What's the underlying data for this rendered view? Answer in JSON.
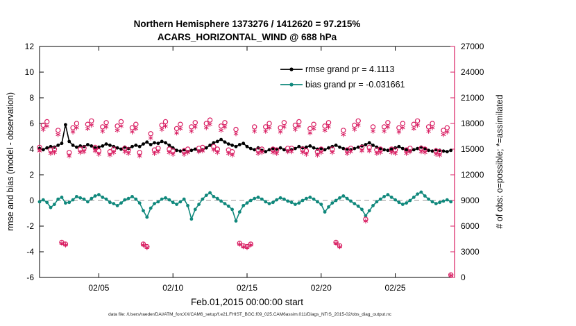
{
  "caption": "data file: /Users/raeder/DAI/ATM_forcXX/CAM6_setup/f.e21.FHIST_BGC.f09_025.CAM6assim.011/Diags_NTrS_2015-02/obs_diag_output.nc",
  "chart_data": {
    "type": "line",
    "title": "Northern Hemisphere 1373276 / 1412620 = 97.215%",
    "subtitle": "ACARS_HORIZONTAL_WIND @ 688 hPa",
    "xlabel": "Feb.01,2015 00:00:00 start",
    "ylabel_left": "rmse and bias (model - observation)",
    "ylabel_right": "# of obs: o=possible; *=assimilated",
    "xlim": [
      1,
      29
    ],
    "ylim_left": [
      -6,
      12
    ],
    "ylim_right": [
      0,
      27000
    ],
    "yticks_left": [
      -6,
      -4,
      -2,
      0,
      2,
      4,
      6,
      8,
      10,
      12
    ],
    "yticks_right": [
      0,
      3000,
      6000,
      9000,
      12000,
      15000,
      18000,
      21000,
      24000,
      27000
    ],
    "xticks": [
      {
        "value": 5,
        "label": "02/05"
      },
      {
        "value": 10,
        "label": "02/10"
      },
      {
        "value": 15,
        "label": "02/15"
      },
      {
        "value": 20,
        "label": "02/20"
      },
      {
        "value": 25,
        "label": "02/25"
      }
    ],
    "x_days": {
      "start": 1.0,
      "step": 0.25,
      "count": 112
    },
    "zero_line": {
      "value": 0,
      "color": "#aaaaaa"
    },
    "legend": [
      {
        "label": "rmse grand pr = 4.1113",
        "text_color": "#2222cc",
        "line_color": "#000000"
      },
      {
        "label": "bias grand pr = -0.031661",
        "text_color": "#10887c",
        "line_color": "#10887c"
      }
    ],
    "series": [
      {
        "name": "rmse",
        "axis": "left",
        "color": "#000000",
        "style": "line-dot",
        "values": [
          4.05,
          3.95,
          4.1,
          4.2,
          4.15,
          4.3,
          4.45,
          5.9,
          4.6,
          4.3,
          4.15,
          4.25,
          4.2,
          4.35,
          4.25,
          4.1,
          4.15,
          4.25,
          4.4,
          4.3,
          4.2,
          4.1,
          4.0,
          4.15,
          4.05,
          4.2,
          4.3,
          4.2,
          4.4,
          4.55,
          4.35,
          4.5,
          4.45,
          4.6,
          4.5,
          4.3,
          4.1,
          3.9,
          3.85,
          3.95,
          3.8,
          3.9,
          4.0,
          3.85,
          3.95,
          4.1,
          4.3,
          4.5,
          4.6,
          4.75,
          4.55,
          4.4,
          4.3,
          4.2,
          4.35,
          4.45,
          4.2,
          4.05,
          3.95,
          4.1,
          3.9,
          3.8,
          3.95,
          4.05,
          4.0,
          4.1,
          3.95,
          3.85,
          3.95,
          4.05,
          4.2,
          4.1,
          4.15,
          4.25,
          4.1,
          4.0,
          4.05,
          3.95,
          4.1,
          4.2,
          4.3,
          4.15,
          4.05,
          4.0,
          3.95,
          4.05,
          4.15,
          4.25,
          4.35,
          4.5,
          4.3,
          4.15,
          4.05,
          3.95,
          3.9,
          4.0,
          4.1,
          4.2,
          4.05,
          3.95,
          3.85,
          3.95,
          4.05,
          4.15,
          4.05,
          3.9,
          3.85,
          3.95,
          3.9,
          3.85,
          3.8,
          3.9
        ]
      },
      {
        "name": "bias",
        "axis": "left",
        "color": "#10887c",
        "style": "line-dot",
        "values": [
          -0.1,
          0.05,
          -0.15,
          -0.55,
          -0.3,
          0.1,
          0.25,
          -0.2,
          -0.15,
          0.05,
          0.3,
          0.2,
          0.1,
          -0.1,
          0.15,
          0.35,
          0.45,
          0.25,
          0.1,
          -0.15,
          -0.25,
          -0.4,
          -0.2,
          0.05,
          0.15,
          0.3,
          0.1,
          -0.2,
          -0.8,
          -1.3,
          -0.6,
          -0.25,
          -0.1,
          0.1,
          0.2,
          0.05,
          -0.15,
          -0.3,
          -0.1,
          0.1,
          -0.4,
          -1.45,
          -0.7,
          -0.3,
          0.1,
          0.4,
          0.6,
          0.3,
          0.15,
          -0.05,
          -0.25,
          -0.45,
          -0.7,
          -1.6,
          -0.9,
          -0.4,
          -0.2,
          0.0,
          0.15,
          0.25,
          0.1,
          -0.1,
          -0.25,
          -0.15,
          0.05,
          0.2,
          0.1,
          -0.05,
          -0.15,
          -0.3,
          -0.2,
          0.0,
          0.15,
          0.25,
          0.1,
          -0.1,
          -0.3,
          -0.9,
          -0.5,
          -0.2,
          0.0,
          0.2,
          0.35,
          0.15,
          -0.05,
          -0.25,
          -0.45,
          -0.7,
          -1.2,
          -0.8,
          -0.4,
          -0.1,
          0.1,
          0.3,
          0.45,
          0.25,
          0.05,
          -0.15,
          -0.3,
          -0.2,
          0.0,
          0.25,
          0.5,
          0.65,
          0.35,
          0.1,
          -0.1,
          -0.25,
          -0.15,
          -0.05,
          0.05,
          -0.1
        ]
      },
      {
        "name": "possible",
        "axis": "right",
        "color": "#d81b60",
        "style": "circle",
        "values": [
          15200,
          17800,
          18200,
          14900,
          15000,
          17200,
          4100,
          3900,
          14600,
          17500,
          18000,
          15000,
          15100,
          17900,
          18300,
          15200,
          14800,
          17600,
          18100,
          14700,
          15000,
          17700,
          18200,
          15100,
          14900,
          17500,
          17900,
          14600,
          3900,
          3600,
          16800,
          14900,
          15100,
          17800,
          18200,
          15000,
          14800,
          17400,
          17900,
          14800,
          15000,
          17600,
          18100,
          15100,
          15200,
          18000,
          18400,
          15300,
          15000,
          17700,
          18100,
          14900,
          14700,
          17300,
          4000,
          3700,
          3600,
          3900,
          17600,
          14900,
          15000,
          17600,
          18000,
          15000,
          14900,
          17500,
          18100,
          15100,
          15100,
          17800,
          18200,
          15000,
          14800,
          17400,
          17900,
          14700,
          15000,
          17700,
          18100,
          15000,
          4100,
          3700,
          17200,
          14900,
          15100,
          17800,
          18300,
          15200,
          6800,
          15200,
          17600,
          14900,
          15000,
          17600,
          18100,
          15000,
          14900,
          17500,
          18000,
          14900,
          15100,
          17900,
          18300,
          15100,
          15000,
          17600,
          18000,
          14800,
          14700,
          17200,
          17500,
          300
        ]
      },
      {
        "name": "assimilated",
        "axis": "right",
        "color": "#d81b60",
        "style": "asterisk",
        "values": [
          14800,
          17300,
          17700,
          14500,
          14600,
          16700,
          4000,
          3800,
          14200,
          17000,
          17500,
          14600,
          14700,
          17400,
          17800,
          14800,
          14400,
          17100,
          17600,
          14300,
          14600,
          17200,
          17700,
          14700,
          14500,
          17000,
          17400,
          14200,
          3800,
          3500,
          16300,
          14500,
          14700,
          17300,
          17700,
          14600,
          14400,
          16900,
          17400,
          14400,
          14600,
          17100,
          17600,
          14700,
          14800,
          17500,
          17900,
          14900,
          14600,
          17200,
          17600,
          14500,
          14300,
          16800,
          3900,
          3600,
          3500,
          3800,
          17100,
          14500,
          14600,
          17100,
          17500,
          14600,
          14500,
          17000,
          17600,
          14700,
          14700,
          17300,
          17700,
          14600,
          14400,
          16900,
          17400,
          14300,
          14600,
          17200,
          17600,
          14600,
          4000,
          3600,
          16700,
          14500,
          14700,
          17300,
          17800,
          14800,
          6600,
          14800,
          17100,
          14500,
          14600,
          17100,
          17600,
          14600,
          14500,
          17000,
          17500,
          14500,
          14700,
          17400,
          17800,
          14700,
          14600,
          17100,
          17500,
          14400,
          14300,
          16700,
          17000,
          250
        ]
      }
    ]
  }
}
